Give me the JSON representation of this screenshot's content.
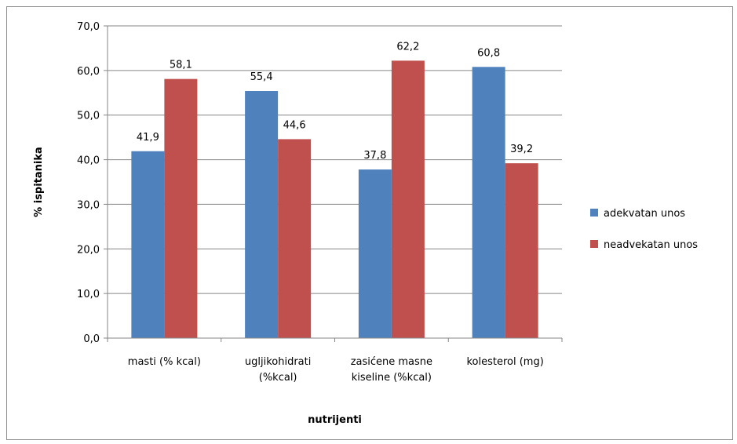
{
  "chart_data": {
    "type": "bar",
    "title": "",
    "xlabel": "nutrijenti",
    "ylabel": "% ispitanika",
    "ylim": [
      0,
      70
    ],
    "yticks": [
      0,
      10,
      20,
      30,
      40,
      50,
      60,
      70
    ],
    "ytick_labels": [
      "0,0",
      "10,0",
      "20,0",
      "30,0",
      "40,0",
      "50,0",
      "60,0",
      "70,0"
    ],
    "grid": true,
    "legend_position": "right",
    "categories": [
      [
        "masti (% kcal)"
      ],
      [
        "ugljikohidrati",
        "(%kcal)"
      ],
      [
        "zasićene masne",
        "kiseline (%kcal)"
      ],
      [
        "kolesterol (mg)"
      ]
    ],
    "series": [
      {
        "name": "adekvatan unos",
        "color": "#4f81bd",
        "values": [
          41.9,
          55.4,
          37.8,
          60.8
        ],
        "labels": [
          "41,9",
          "55,4",
          "37,8",
          "60,8"
        ]
      },
      {
        "name": "neadvekatan unos",
        "color": "#c0504d",
        "values": [
          58.1,
          44.6,
          62.2,
          39.2
        ],
        "labels": [
          "58,1",
          "44,6",
          "62,2",
          "39,2"
        ]
      }
    ]
  }
}
